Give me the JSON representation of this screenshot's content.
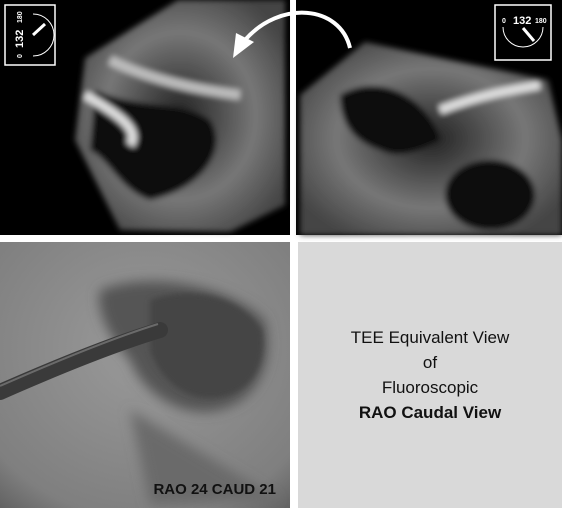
{
  "top_left_dial": {
    "min": 0,
    "angle": 132,
    "max": 180
  },
  "top_right_dial": {
    "min": 0,
    "angle": 132,
    "max": 180
  },
  "fluoro_label": "RAO 24 CAUD 21",
  "caption": {
    "lines": [
      "TEE Equivalent View",
      "of",
      "Fluoroscopic"
    ],
    "bold_line": "RAO Caudal View"
  }
}
